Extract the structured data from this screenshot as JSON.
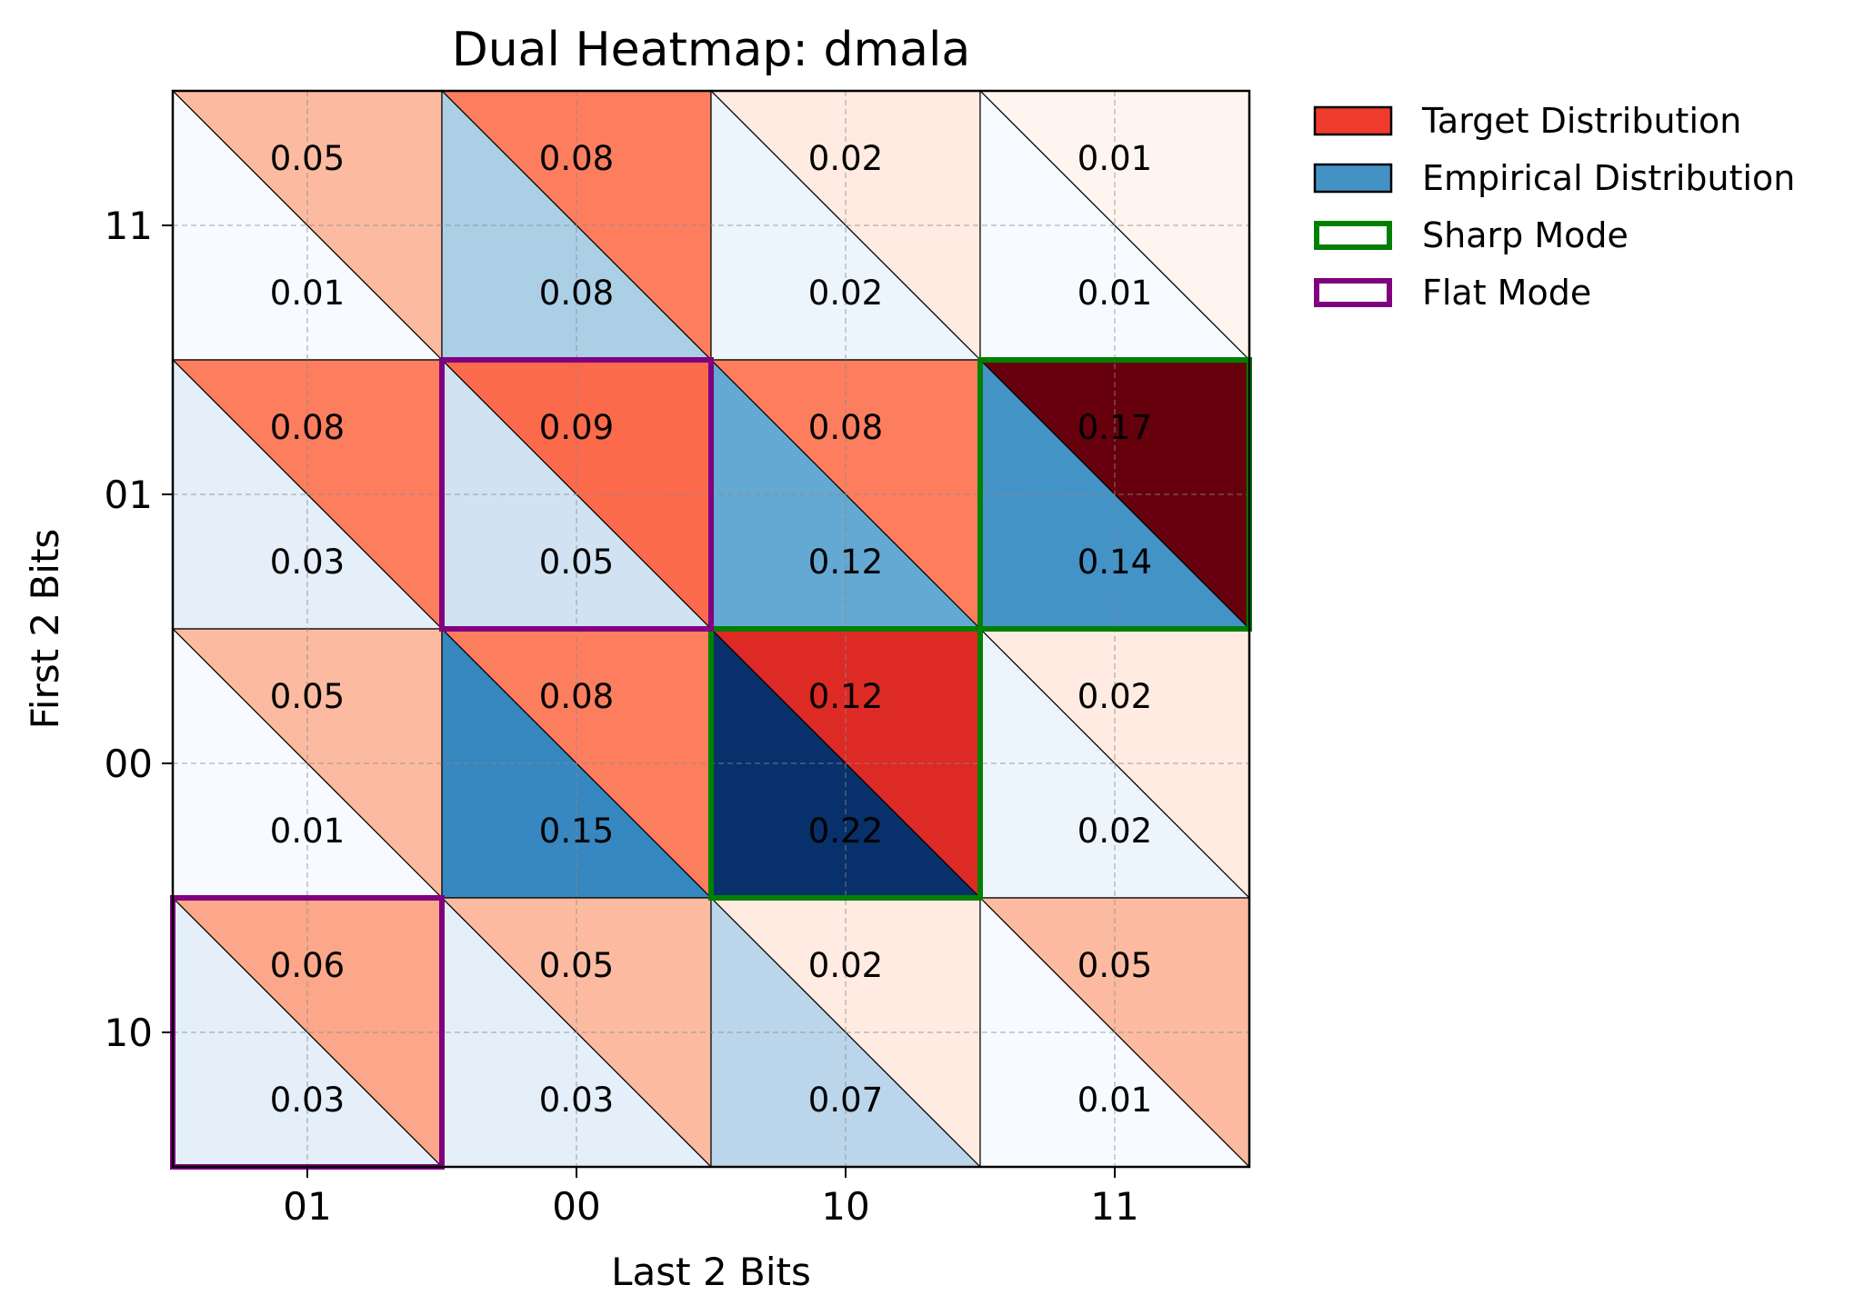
{
  "chart_data": {
    "type": "heatmap",
    "title": "Dual Heatmap: dmala",
    "xlabel": "Last 2 Bits",
    "ylabel": "First 2 Bits",
    "x_categories": [
      "01",
      "00",
      "10",
      "11"
    ],
    "y_categories": [
      "11",
      "01",
      "00",
      "10"
    ],
    "grid": true,
    "legend_position": "outside top-right",
    "series": [
      {
        "name": "Target Distribution",
        "colormap": "Reds",
        "values": [
          [
            0.05,
            0.08,
            0.02,
            0.01
          ],
          [
            0.08,
            0.09,
            0.08,
            0.17
          ],
          [
            0.05,
            0.08,
            0.12,
            0.02
          ],
          [
            0.06,
            0.05,
            0.02,
            0.05
          ]
        ]
      },
      {
        "name": "Empirical Distribution",
        "colormap": "Blues",
        "values": [
          [
            0.01,
            0.08,
            0.02,
            0.01
          ],
          [
            0.03,
            0.05,
            0.12,
            0.14
          ],
          [
            0.01,
            0.15,
            0.22,
            0.02
          ],
          [
            0.03,
            0.03,
            0.07,
            0.01
          ]
        ]
      }
    ],
    "highlights": [
      {
        "name": "Sharp Mode",
        "color": "#008000",
        "cells": [
          [
            "01",
            "11"
          ],
          [
            "00",
            "10"
          ]
        ]
      },
      {
        "name": "Flat Mode",
        "color": "#800080",
        "cells": [
          [
            "01",
            "00"
          ],
          [
            "10",
            "01"
          ]
        ]
      }
    ],
    "legend": [
      {
        "label": "Target Distribution",
        "kind": "filled",
        "color": "#ef3b2c"
      },
      {
        "label": "Empirical Distribution",
        "kind": "filled",
        "color": "#4292c6"
      },
      {
        "label": "Sharp Mode",
        "kind": "outline",
        "color": "#008000"
      },
      {
        "label": "Flat Mode",
        "kind": "outline",
        "color": "#800080"
      }
    ]
  }
}
